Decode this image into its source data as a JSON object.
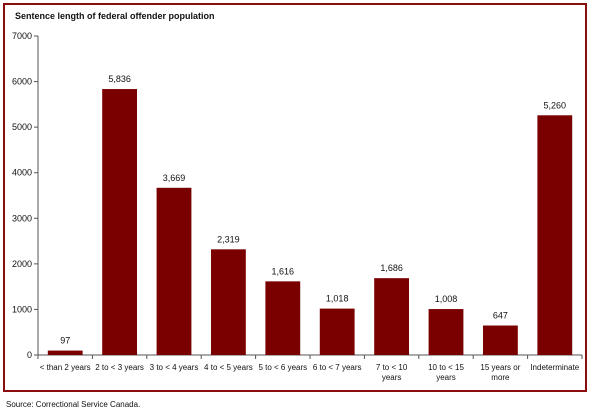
{
  "chart_data": {
    "type": "bar",
    "title": "Sentence length of federal offender population",
    "categories": [
      [
        "< than 2 years"
      ],
      [
        "2 to < 3 years"
      ],
      [
        "3 to < 4 years"
      ],
      [
        "4 to < 5 years"
      ],
      [
        "5 to < 6 years"
      ],
      [
        "6 to < 7 years"
      ],
      [
        "7 to < 10",
        "years"
      ],
      [
        "10 to < 15",
        "years"
      ],
      [
        "15 years or",
        "more"
      ],
      [
        "Indeterminate"
      ]
    ],
    "values": [
      97,
      5836,
      3669,
      2319,
      1616,
      1018,
      1686,
      1008,
      647,
      5260
    ],
    "value_labels": [
      "97",
      "5,836",
      "3,669",
      "2,319",
      "1,616",
      "1,018",
      "1,686",
      "1,008",
      "647",
      "5,260"
    ],
    "ylim": [
      0,
      7000
    ],
    "yticks": [
      0,
      1000,
      2000,
      3000,
      4000,
      5000,
      6000,
      7000
    ],
    "xlabel": "",
    "ylabel": "",
    "grid": false,
    "bar_color": "#7a0000",
    "frame_color": "#8b0e0e"
  },
  "source": "Source:  Correctional Service Canada."
}
